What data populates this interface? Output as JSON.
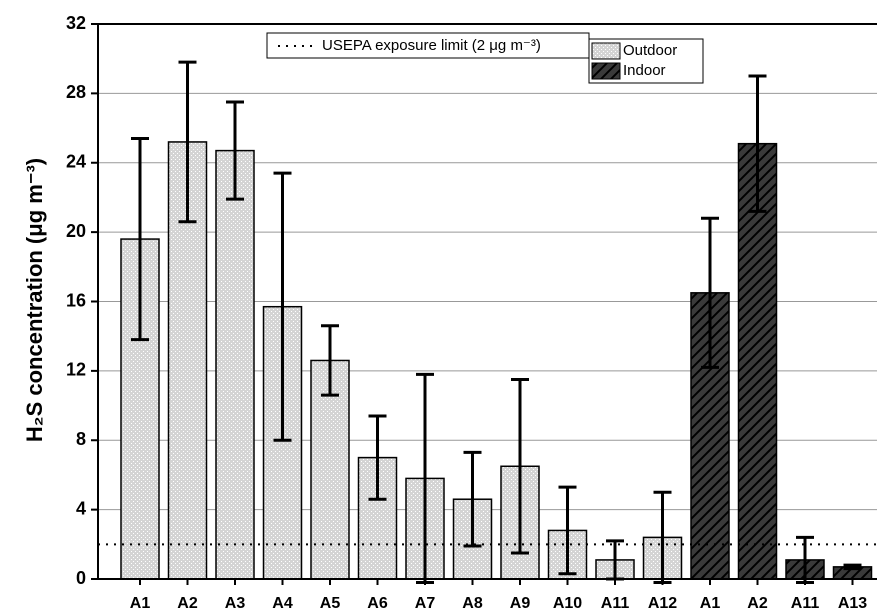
{
  "chart_data": {
    "type": "bar",
    "y_label": "H₂S concentration (μg m⁻³)",
    "categories": [
      "A1",
      "A2",
      "A3",
      "A4",
      "A5",
      "A6",
      "A7",
      "A8",
      "A9",
      "A10",
      "A11",
      "A12",
      "A1",
      "A2",
      "A11",
      "A13"
    ],
    "series": [
      {
        "name": "Outdoor",
        "color": "#d4d4d4",
        "values": [
          19.6,
          25.2,
          24.7,
          15.7,
          12.6,
          7.0,
          5.8,
          4.6,
          6.5,
          2.8,
          1.1,
          2.4,
          null,
          null,
          null,
          null
        ],
        "errors": [
          5.8,
          4.6,
          2.8,
          7.7,
          2.0,
          2.4,
          6.0,
          2.7,
          5.0,
          2.5,
          1.1,
          2.6,
          null,
          null,
          null,
          null
        ]
      },
      {
        "name": "Indoor",
        "color": "#3a3a3a",
        "values": [
          null,
          null,
          null,
          null,
          null,
          null,
          null,
          null,
          null,
          null,
          null,
          null,
          16.5,
          25.1,
          1.1,
          0.7
        ],
        "errors": [
          null,
          null,
          null,
          null,
          null,
          null,
          null,
          null,
          null,
          null,
          null,
          null,
          4.3,
          3.9,
          1.3,
          0.1
        ]
      }
    ],
    "reference_line": {
      "value": 2,
      "label": "USEPA exposure limit (2 μg m⁻³)"
    },
    "ylim": [
      0,
      32
    ],
    "yticks": [
      0,
      4,
      8,
      12,
      16,
      20,
      24,
      28,
      32
    ],
    "grid": true
  }
}
